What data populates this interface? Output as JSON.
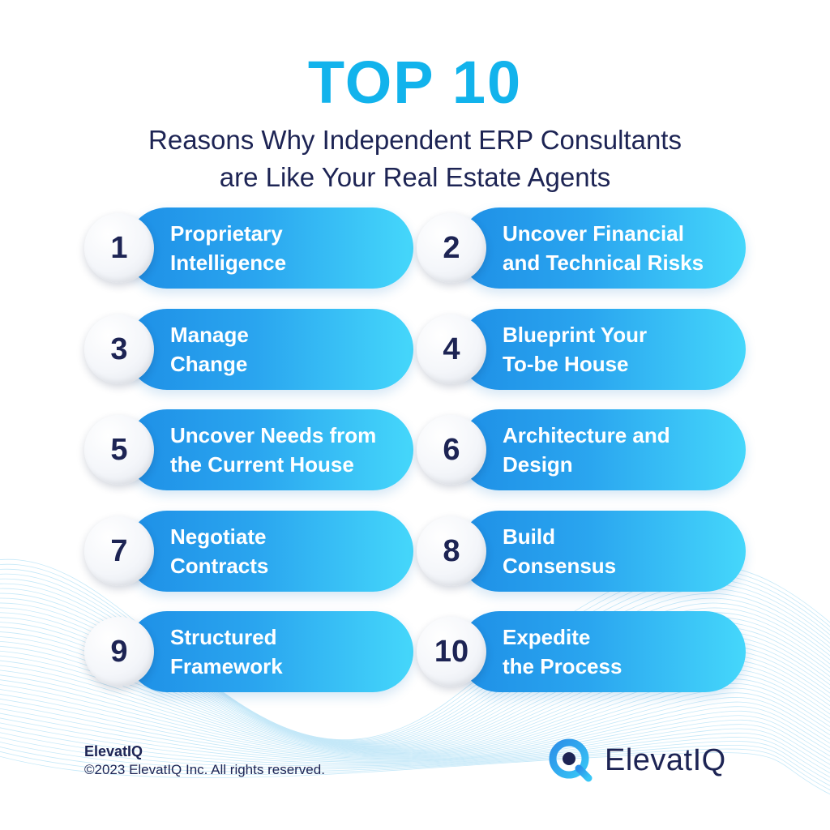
{
  "header": {
    "title": "TOP 10",
    "subtitle_line1": "Reasons Why Independent ERP Consultants",
    "subtitle_line2": "are Like Your Real Estate Agents"
  },
  "reasons": [
    {
      "number": "1",
      "line1": "Proprietary",
      "line2": "Intelligence"
    },
    {
      "number": "2",
      "line1": "Uncover Financial",
      "line2": "and Technical Risks"
    },
    {
      "number": "3",
      "line1": "Manage",
      "line2": "Change"
    },
    {
      "number": "4",
      "line1": "Blueprint Your",
      "line2": "To-be House"
    },
    {
      "number": "5",
      "line1": "Uncover Needs from",
      "line2": "the Current House"
    },
    {
      "number": "6",
      "line1": "Architecture and",
      "line2": "Design"
    },
    {
      "number": "7",
      "line1": "Negotiate",
      "line2": "Contracts"
    },
    {
      "number": "8",
      "line1": "Build",
      "line2": "Consensus"
    },
    {
      "number": "9",
      "line1": "Structured",
      "line2": "Framework"
    },
    {
      "number": "10",
      "line1": "Expedite",
      "line2": "the Process"
    }
  ],
  "footer": {
    "brand": "ElevatIQ",
    "copyright": "©2023 ElevatIQ Inc. All rights reserved."
  },
  "logo": {
    "text": "ElevatIQ",
    "icon": "q-magnifier-logo-icon"
  },
  "colors": {
    "accent": "#12b3ec",
    "navy": "#1d2454",
    "pill_start": "#1e8fe6",
    "pill_end": "#45d7fb"
  }
}
